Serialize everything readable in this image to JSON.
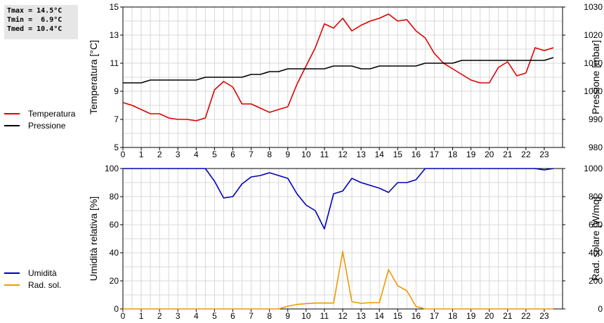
{
  "stats": {
    "tmax": "Tmax = 14.5°C",
    "tmin": "Tmin =  6.9°C",
    "tmed": "Tmed = 10.4°C"
  },
  "legend_top": [
    {
      "label": "Temperatura",
      "color": "#dd0000"
    },
    {
      "label": "Pressione",
      "color": "#000000"
    }
  ],
  "legend_bottom": [
    {
      "label": "Umidità",
      "color": "#0000bb"
    },
    {
      "label": "Rad. sol.",
      "color": "#ee9900"
    }
  ],
  "chart_data": [
    {
      "type": "line",
      "xlim": [
        0,
        24
      ],
      "xticks": [
        "0",
        "1",
        "2",
        "3",
        "4",
        "5",
        "6",
        "7",
        "8",
        "9",
        "10",
        "11",
        "12",
        "13",
        "14",
        "15",
        "16",
        "17",
        "18",
        "19",
        "20",
        "21",
        "22",
        "23"
      ],
      "ylabel": "Temperatura [°C]",
      "ylim": [
        5,
        15
      ],
      "yticks": [
        "5",
        "7",
        "9",
        "11",
        "13",
        "15"
      ],
      "y2label": "Pressione [mbar]",
      "y2lim": [
        980,
        1030
      ],
      "y2ticks": [
        "980",
        "990",
        "1000",
        "1010",
        "1020",
        "1030"
      ],
      "grid": true,
      "series": [
        {
          "name": "Temperatura",
          "axis": "left",
          "color": "#dd0000",
          "x": [
            0,
            0.5,
            1,
            1.5,
            2,
            2.5,
            3,
            3.5,
            4,
            4.5,
            5,
            5.5,
            6,
            6.5,
            7,
            7.5,
            8,
            8.5,
            9,
            9.5,
            10,
            10.5,
            11,
            11.5,
            12,
            12.5,
            13,
            13.5,
            14,
            14.5,
            15,
            15.5,
            16,
            16.5,
            17,
            17.5,
            18,
            18.5,
            19,
            19.5,
            20,
            20.5,
            21,
            21.5,
            22,
            22.5,
            23,
            23.5
          ],
          "values": [
            8.2,
            8.0,
            7.7,
            7.4,
            7.4,
            7.1,
            7.0,
            7.0,
            6.9,
            7.1,
            9.1,
            9.7,
            9.3,
            8.1,
            8.1,
            7.8,
            7.5,
            7.7,
            7.9,
            9.5,
            10.8,
            12.1,
            13.8,
            13.5,
            14.2,
            13.3,
            13.7,
            14.0,
            14.2,
            14.5,
            14.0,
            14.1,
            13.3,
            12.8,
            11.7,
            11.0,
            10.6,
            10.2,
            9.8,
            9.6,
            9.6,
            10.7,
            11.1,
            10.1,
            10.3,
            12.1,
            11.9,
            12.1
          ]
        },
        {
          "name": "Pressione",
          "axis": "right",
          "color": "#000000",
          "x": [
            0,
            0.5,
            1,
            1.5,
            2,
            2.5,
            3,
            3.5,
            4,
            4.5,
            5,
            5.5,
            6,
            6.5,
            7,
            7.5,
            8,
            8.5,
            9,
            9.5,
            10,
            10.5,
            11,
            11.5,
            12,
            12.5,
            13,
            13.5,
            14,
            14.5,
            15,
            15.5,
            16,
            16.5,
            17,
            17.5,
            18,
            18.5,
            19,
            19.5,
            20,
            20.5,
            21,
            21.5,
            22,
            22.5,
            23,
            23.5
          ],
          "values": [
            1003,
            1003,
            1003,
            1004,
            1004,
            1004,
            1004,
            1004,
            1004,
            1005,
            1005,
            1005,
            1005,
            1005,
            1006,
            1006,
            1007,
            1007,
            1008,
            1008,
            1008,
            1008,
            1008,
            1009,
            1009,
            1009,
            1008,
            1008,
            1009,
            1009,
            1009,
            1009,
            1009,
            1010,
            1010,
            1010,
            1010,
            1011,
            1011,
            1011,
            1011,
            1011,
            1011,
            1011,
            1011,
            1011,
            1011,
            1012
          ]
        }
      ]
    },
    {
      "type": "line",
      "xlim": [
        0,
        24
      ],
      "xticks": [
        "0",
        "1",
        "2",
        "3",
        "4",
        "5",
        "6",
        "7",
        "8",
        "9",
        "10",
        "11",
        "12",
        "13",
        "14",
        "15",
        "16",
        "17",
        "18",
        "19",
        "20",
        "21",
        "22",
        "23"
      ],
      "ylabel": "Umidità relativa [%]",
      "ylim": [
        0,
        100
      ],
      "yticks": [
        "0",
        "20",
        "40",
        "60",
        "80",
        "100"
      ],
      "y2label": "Rad. solare [W/mq]",
      "y2lim": [
        0,
        1000
      ],
      "y2ticks": [
        "0",
        "200",
        "400",
        "600",
        "800",
        "1000"
      ],
      "grid": true,
      "series": [
        {
          "name": "Umidità",
          "axis": "left",
          "color": "#0000bb",
          "x": [
            0,
            0.5,
            1,
            1.5,
            2,
            2.5,
            3,
            3.5,
            4,
            4.5,
            5,
            5.5,
            6,
            6.5,
            7,
            7.5,
            8,
            8.5,
            9,
            9.5,
            10,
            10.5,
            11,
            11.5,
            12,
            12.5,
            13,
            13.5,
            14,
            14.5,
            15,
            15.5,
            16,
            16.5,
            17,
            17.5,
            18,
            18.5,
            19,
            19.5,
            20,
            20.5,
            21,
            21.5,
            22,
            22.5,
            23,
            23.5
          ],
          "values": [
            100,
            100,
            100,
            100,
            100,
            100,
            100,
            100,
            100,
            100,
            91,
            79,
            80,
            89,
            94,
            95,
            97,
            95,
            93,
            82,
            74,
            70,
            57,
            82,
            84,
            93,
            90,
            88,
            86,
            83,
            90,
            90,
            92,
            100,
            100,
            100,
            100,
            100,
            100,
            100,
            100,
            100,
            100,
            100,
            100,
            100,
            99,
            100
          ]
        },
        {
          "name": "Rad. sol.",
          "axis": "right",
          "color": "#ee9900",
          "x": [
            0,
            0.5,
            1,
            1.5,
            2,
            2.5,
            3,
            3.5,
            4,
            4.5,
            5,
            5.5,
            6,
            6.5,
            7,
            7.5,
            8,
            8.5,
            9,
            9.5,
            10,
            10.5,
            11,
            11.5,
            12,
            12.5,
            13,
            13.5,
            14,
            14.5,
            15,
            15.5,
            16,
            16.5,
            17,
            17.5,
            18,
            18.5,
            19,
            19.5,
            20,
            20.5,
            21,
            21.5,
            22,
            22.5,
            23,
            23.5
          ],
          "values": [
            0,
            0,
            0,
            0,
            0,
            0,
            0,
            0,
            0,
            0,
            0,
            0,
            0,
            0,
            0,
            0,
            0,
            0,
            20,
            32,
            38,
            42,
            42,
            42,
            410,
            52,
            40,
            45,
            45,
            280,
            165,
            130,
            18,
            0,
            0,
            0,
            0,
            0,
            0,
            0,
            0,
            0,
            0,
            0,
            0,
            0,
            0,
            0
          ]
        }
      ]
    }
  ]
}
